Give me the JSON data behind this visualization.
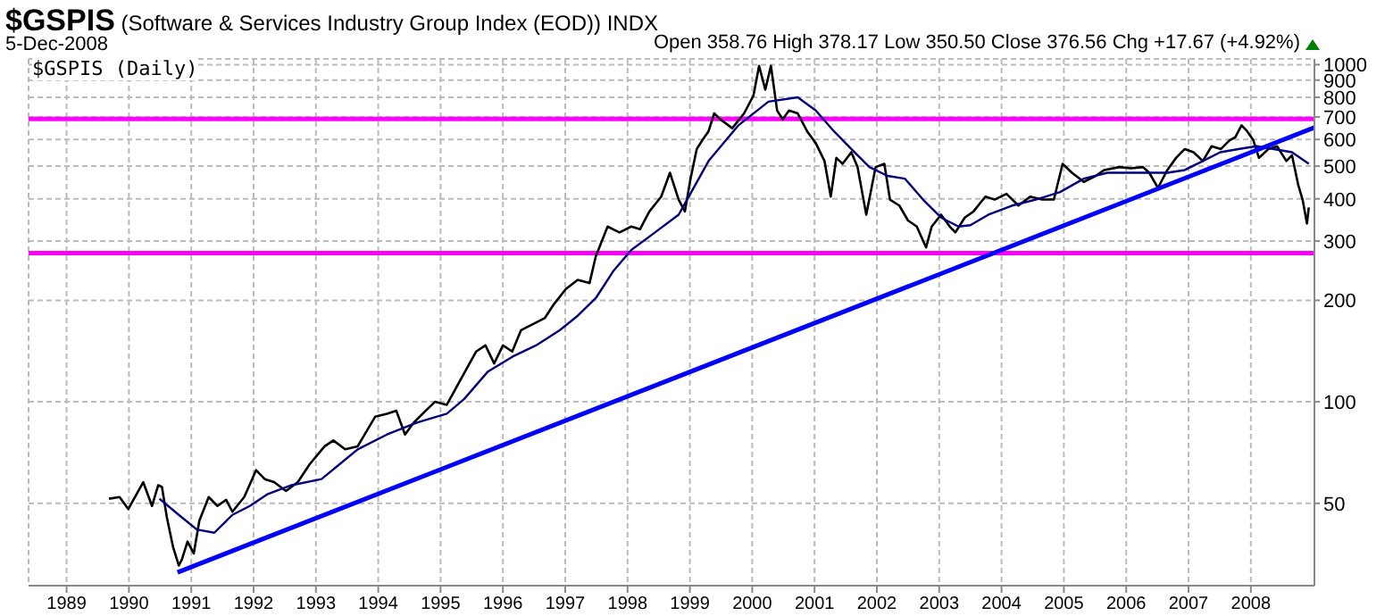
{
  "chart_data": {
    "type": "line",
    "title": "$GSPIS (Software & Services Industry Group Index (EOD)) INDX",
    "subtitle": "5-Dec-2008",
    "annotations": [
      "Open 358.76 High 378.17 Low 350.50 Close 376.56 Chg +17.67 (+4.92%)",
      "$GSPIS (Daily)"
    ],
    "log": "y",
    "grid": true,
    "xlim": [
      1988.39,
      2009.02
    ],
    "xticks": [
      1989,
      1990,
      1991,
      1992,
      1993,
      1994,
      1995,
      1996,
      1997,
      1998,
      1999,
      2000,
      2001,
      2002,
      2003,
      2004,
      2005,
      2006,
      2007,
      2008
    ],
    "ylim": [
      28.5,
      1040
    ],
    "yticks": [
      50,
      100,
      200,
      300,
      400,
      500,
      600,
      700,
      800,
      900,
      1000
    ],
    "ref_lines": [
      {
        "axis": "y",
        "value": 690,
        "color": "#ff00ff"
      },
      {
        "axis": "y",
        "value": 276,
        "color": "#ff00ff"
      }
    ],
    "series": [
      {
        "type": "line",
        "color": "#000000",
        "x": [
          1989.68,
          1989.85,
          1989.99,
          1990.23,
          1990.37,
          1990.47,
          1990.53,
          1990.61,
          1990.71,
          1990.8,
          1990.85,
          1990.94,
          1991.04,
          1991.13,
          1991.28,
          1991.42,
          1991.56,
          1991.66,
          1991.85,
          1992.04,
          1992.18,
          1992.33,
          1992.52,
          1992.71,
          1992.9,
          1993.14,
          1993.28,
          1993.47,
          1993.67,
          1993.95,
          1994.14,
          1994.29,
          1994.43,
          1994.57,
          1994.76,
          1994.91,
          1995.1,
          1995.34,
          1995.57,
          1995.72,
          1995.86,
          1996.0,
          1996.15,
          1996.29,
          1996.48,
          1996.67,
          1996.82,
          1997.01,
          1997.2,
          1997.39,
          1997.49,
          1997.68,
          1997.87,
          1998.06,
          1998.2,
          1998.35,
          1998.54,
          1998.68,
          1998.82,
          1998.92,
          1999.01,
          1999.11,
          1999.2,
          1999.3,
          1999.39,
          1999.49,
          1999.68,
          1999.87,
          2000.02,
          2000.11,
          2000.21,
          2000.3,
          2000.4,
          2000.49,
          2000.59,
          2000.73,
          2000.88,
          2001.02,
          2001.16,
          2001.26,
          2001.35,
          2001.45,
          2001.59,
          2001.69,
          2001.83,
          2001.98,
          2002.12,
          2002.21,
          2002.36,
          2002.5,
          2002.64,
          2002.79,
          2002.88,
          2003.03,
          2003.17,
          2003.26,
          2003.41,
          2003.55,
          2003.74,
          2003.89,
          2004.08,
          2004.27,
          2004.46,
          2004.65,
          2004.84,
          2004.98,
          2005.13,
          2005.32,
          2005.51,
          2005.65,
          2005.89,
          2006.08,
          2006.27,
          2006.37,
          2006.51,
          2006.66,
          2006.8,
          2006.94,
          2007.08,
          2007.23,
          2007.37,
          2007.52,
          2007.66,
          2007.75,
          2007.85,
          2007.94,
          2008.04,
          2008.13,
          2008.28,
          2008.42,
          2008.57,
          2008.66,
          2008.76,
          2008.83,
          2008.9,
          2008.93
        ],
        "values": [
          51.6,
          52.2,
          48.1,
          57.8,
          49.1,
          56.6,
          55.9,
          45.3,
          37.0,
          32.7,
          34.1,
          38.5,
          35.5,
          44.4,
          52.2,
          49.1,
          51.2,
          47.2,
          52.2,
          62.7,
          59.0,
          57.8,
          54.4,
          57.8,
          65.3,
          73.8,
          76.8,
          72.3,
          73.8,
          90.3,
          92.2,
          94.1,
          80.0,
          86.8,
          94.1,
          100,
          98.0,
          118,
          141,
          147,
          130,
          147,
          141,
          163,
          170,
          177,
          195,
          216,
          230,
          225,
          270,
          331,
          318,
          331,
          325,
          367,
          406,
          478,
          398,
          367,
          459,
          562,
          597,
          635,
          717,
          688,
          648,
          717,
          810,
          992,
          843,
          992,
          731,
          688,
          731,
          717,
          635,
          585,
          518,
          406,
          529,
          508,
          550,
          497,
          359,
          497,
          508,
          398,
          382,
          345,
          331,
          287,
          331,
          359,
          331,
          318,
          352,
          367,
          406,
          398,
          414,
          382,
          406,
          398,
          398,
          508,
          478,
          449,
          468,
          487,
          497,
          493,
          497,
          478,
          431,
          487,
          529,
          562,
          550,
          518,
          573,
          562,
          597,
          609,
          661,
          635,
          597,
          529,
          562,
          573,
          518,
          539,
          440,
          398,
          338,
          377
        ]
      },
      {
        "type": "line",
        "color": "#000080",
        "x": [
          1990.49,
          1990.8,
          1991.09,
          1991.37,
          1991.66,
          1991.94,
          1992.23,
          1992.61,
          1993.09,
          1993.38,
          1993.67,
          1994.14,
          1994.62,
          1995.1,
          1995.38,
          1995.76,
          1996.15,
          1996.53,
          1996.91,
          1997.2,
          1997.49,
          1997.77,
          1998.06,
          1998.44,
          1998.82,
          1999.3,
          1999.78,
          2000.26,
          2000.73,
          2001.02,
          2001.31,
          2001.59,
          2001.88,
          2002.17,
          2002.45,
          2002.74,
          2003.03,
          2003.31,
          2003.5,
          2003.79,
          2004.17,
          2004.55,
          2004.94,
          2005.32,
          2005.7,
          2006.08,
          2006.66,
          2006.94,
          2007.23,
          2007.51,
          2007.8,
          2008.09,
          2008.37,
          2008.66,
          2008.93
        ],
        "values": [
          51.6,
          46.2,
          41.8,
          40.9,
          46.2,
          49.1,
          53.3,
          56.6,
          59.0,
          65.3,
          72.3,
          80.0,
          86.8,
          92.2,
          102,
          123,
          136,
          147,
          163,
          180,
          203,
          244,
          282,
          318,
          359,
          518,
          661,
          777,
          800,
          731,
          635,
          562,
          497,
          468,
          459,
          398,
          352,
          331,
          334,
          359,
          382,
          398,
          419,
          459,
          478,
          478,
          478,
          487,
          518,
          550,
          562,
          573,
          562,
          550,
          508
        ]
      },
      {
        "type": "line",
        "color": "#0000ff",
        "x": [
          1990.78,
          2009.02
        ],
        "values": [
          31.2,
          651
        ]
      }
    ]
  }
}
